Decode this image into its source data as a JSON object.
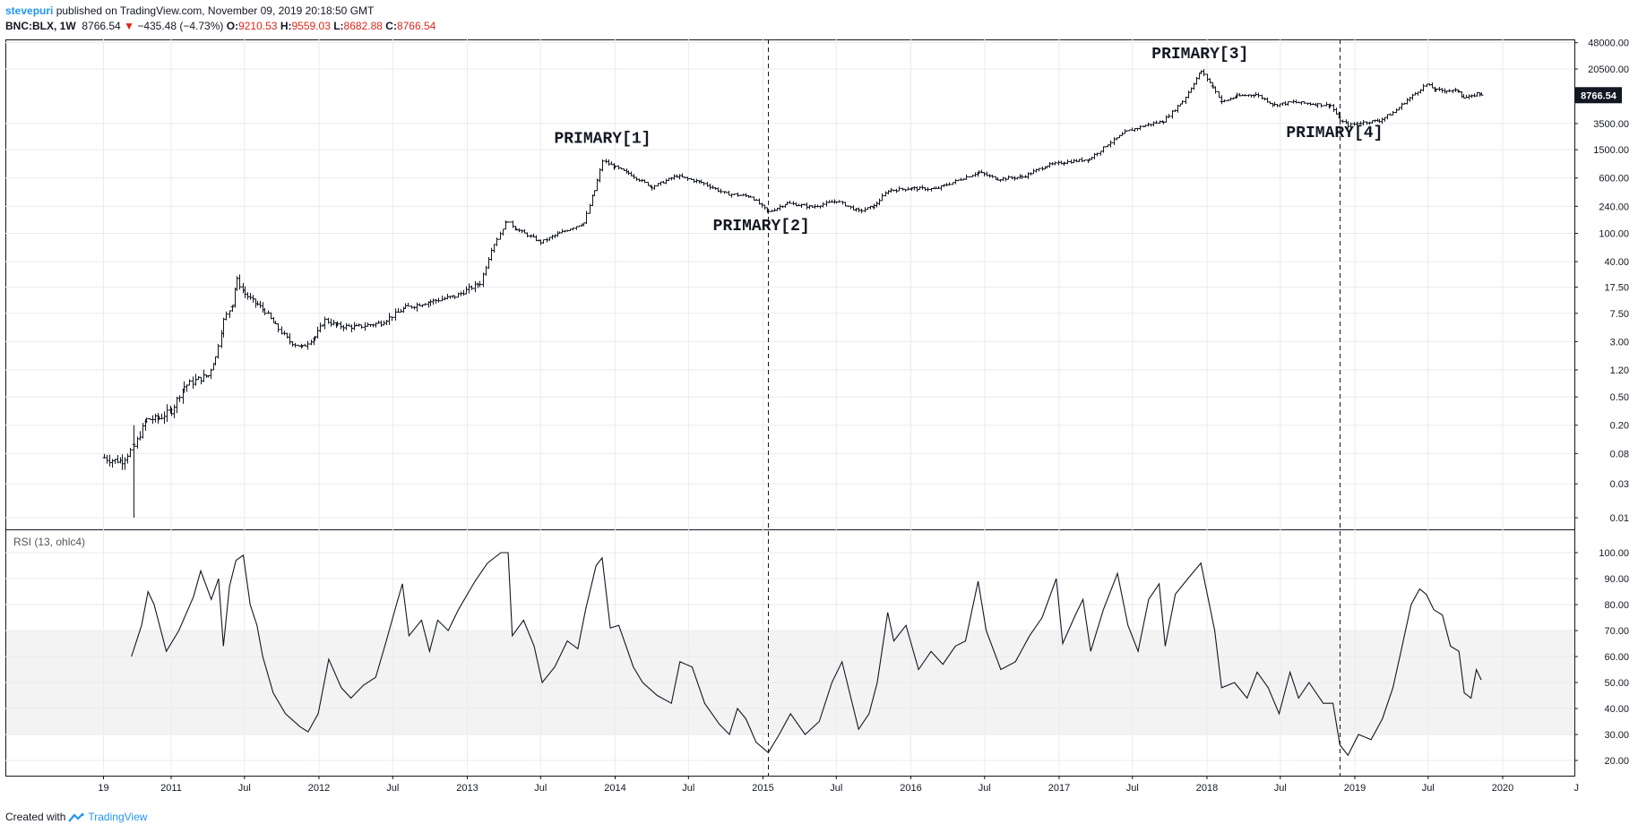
{
  "header": {
    "author": "stevepuri",
    "published_text": " published on TradingView.com, November 09, 2019 20:18:50 GMT",
    "symbol": "BNC:BLX, 1W",
    "last": "8766.54",
    "change_arrow": "▼",
    "change": "−435.48 (−4.73%)",
    "open_label": "O:",
    "open": "9210.53",
    "high_label": "H:",
    "high": "9559.03",
    "low_label": "L:",
    "low": "8682.88",
    "close_label": "C:",
    "close": "8766.54"
  },
  "footer": {
    "created_text": "Created with",
    "brand": "TradingView"
  },
  "colors": {
    "bars": "#131722",
    "down": "#e0261b",
    "link": "#2196f3",
    "grid": "#e9ebef",
    "rsi_band": "#f3f3f3",
    "price_tag_bg": "#131722"
  },
  "chart_data": [
    {
      "type": "ohlc",
      "panel": "price",
      "scale": "log",
      "x_tick_labels": [
        "19",
        "2011",
        "Jul",
        "2012",
        "Jul",
        "2013",
        "Jul",
        "2014",
        "Jul",
        "2015",
        "Jul",
        "2016",
        "Jul",
        "2017",
        "Jul",
        "2018",
        "Jul",
        "2019",
        "Jul",
        "2020",
        "J"
      ],
      "y_tick_labels": [
        "48000.00",
        "20500.00",
        "3500.00",
        "1500.00",
        "600.00",
        "240.00",
        "100.00",
        "40.00",
        "17.50",
        "7.50",
        "3.00",
        "1.20",
        "0.50",
        "0.20",
        "0.08",
        "0.03",
        "0.01"
      ],
      "last_price_label": "8766.54",
      "annotations": [
        "PRIMARY[1]",
        "PRIMARY[2]",
        "PRIMARY[3]",
        "PRIMARY[4]"
      ],
      "vertical_markers": [
        "2015",
        "Nov 2018"
      ],
      "series": [
        {
          "points": [
            [
              "2010-07-18",
              0.07
            ],
            [
              "2010-08-01",
              0.065
            ],
            [
              "2010-09-01",
              0.063
            ],
            [
              "2010-10-01",
              0.1
            ],
            [
              "2010-11-01",
              0.24
            ],
            [
              "2010-12-01",
              0.25
            ],
            [
              "2011-01-01",
              0.32
            ],
            [
              "2011-02-01",
              0.7
            ],
            [
              "2011-03-01",
              0.85
            ],
            [
              "2011-04-01",
              1.0
            ],
            [
              "2011-04-20",
              1.8
            ],
            [
              "2011-05-10",
              6.0
            ],
            [
              "2011-06-01",
              10.0
            ],
            [
              "2011-06-12",
              22.0
            ],
            [
              "2011-07-01",
              14.0
            ],
            [
              "2011-08-01",
              10.0
            ],
            [
              "2011-08-20",
              8.0
            ],
            [
              "2011-09-15",
              5.0
            ],
            [
              "2011-10-20",
              3.0
            ],
            [
              "2011-11-20",
              2.5
            ],
            [
              "2011-12-20",
              3.5
            ],
            [
              "2012-01-15",
              6.0
            ],
            [
              "2012-02-15",
              5.0
            ],
            [
              "2012-04-01",
              4.8
            ],
            [
              "2012-06-01",
              5.5
            ],
            [
              "2012-08-01",
              9.0
            ],
            [
              "2012-10-01",
              11.0
            ],
            [
              "2012-12-01",
              13.0
            ],
            [
              "2013-02-01",
              20.0
            ],
            [
              "2013-03-01",
              60.0
            ],
            [
              "2013-04-08",
              150.0
            ],
            [
              "2013-05-01",
              115.0
            ],
            [
              "2013-07-01",
              75.0
            ],
            [
              "2013-08-15",
              100.0
            ],
            [
              "2013-10-15",
              140.0
            ],
            [
              "2013-11-10",
              400.0
            ],
            [
              "2013-12-01",
              1050.0
            ],
            [
              "2014-01-01",
              850.0
            ],
            [
              "2014-02-01",
              700.0
            ],
            [
              "2014-04-01",
              450.0
            ],
            [
              "2014-06-01",
              640.0
            ],
            [
              "2014-08-01",
              520.0
            ],
            [
              "2014-10-01",
              360.0
            ],
            [
              "2014-12-01",
              330.0
            ],
            [
              "2015-01-14",
              200.0
            ],
            [
              "2015-03-01",
              265.0
            ],
            [
              "2015-05-01",
              235.0
            ],
            [
              "2015-07-01",
              285.0
            ],
            [
              "2015-08-25",
              205.0
            ],
            [
              "2015-10-01",
              240.0
            ],
            [
              "2015-11-05",
              400.0
            ],
            [
              "2016-01-01",
              430.0
            ],
            [
              "2016-03-01",
              420.0
            ],
            [
              "2016-06-15",
              720.0
            ],
            [
              "2016-08-01",
              580.0
            ],
            [
              "2016-10-01",
              620.0
            ],
            [
              "2016-12-01",
              900.0
            ],
            [
              "2017-01-15",
              1000.0
            ],
            [
              "2017-03-15",
              1100.0
            ],
            [
              "2017-05-01",
              1800.0
            ],
            [
              "2017-06-15",
              2700.0
            ],
            [
              "2017-08-01",
              3300.0
            ],
            [
              "2017-09-15",
              3800.0
            ],
            [
              "2017-11-01",
              7200.0
            ],
            [
              "2017-12-17",
              19000.0
            ],
            [
              "2018-01-15",
              11500.0
            ],
            [
              "2018-02-06",
              7000.0
            ],
            [
              "2018-03-15",
              8500.0
            ],
            [
              "2018-05-01",
              9000.0
            ],
            [
              "2018-06-15",
              6400.0
            ],
            [
              "2018-08-01",
              7000.0
            ],
            [
              "2018-10-01",
              6500.0
            ],
            [
              "2018-11-01",
              6300.0
            ],
            [
              "2018-11-25",
              3900.0
            ],
            [
              "2018-12-15",
              3300.0
            ],
            [
              "2019-01-15",
              3600.0
            ],
            [
              "2019-03-01",
              3850.0
            ],
            [
              "2019-04-05",
              5000.0
            ],
            [
              "2019-05-15",
              8000.0
            ],
            [
              "2019-06-26",
              12500.0
            ],
            [
              "2019-07-20",
              10300.0
            ],
            [
              "2019-08-15",
              10200.0
            ],
            [
              "2019-09-15",
              10000.0
            ],
            [
              "2019-09-26",
              8100.0
            ],
            [
              "2019-10-15",
              8300.0
            ],
            [
              "2019-10-28",
              9300.0
            ],
            [
              "2019-11-09",
              8766.54
            ]
          ]
        }
      ]
    },
    {
      "type": "line",
      "panel": "rsi",
      "title": "RSI (13, ohlc4)",
      "y_tick_labels": [
        "100.00",
        "90.00",
        "80.00",
        "70.00",
        "60.00",
        "50.00",
        "40.00",
        "30.00",
        "20.00"
      ],
      "band": [
        30,
        70
      ],
      "ylim": [
        15,
        105
      ],
      "series": [
        {
          "points": [
            [
              "2010-09-25",
              60
            ],
            [
              "2010-10-20",
              72
            ],
            [
              "2010-11-05",
              85
            ],
            [
              "2010-11-20",
              80
            ],
            [
              "2010-12-20",
              62
            ],
            [
              "2011-01-20",
              70
            ],
            [
              "2011-02-25",
              83
            ],
            [
              "2011-03-15",
              93
            ],
            [
              "2011-04-10",
              82
            ],
            [
              "2011-04-28",
              90
            ],
            [
              "2011-05-10",
              64
            ],
            [
              "2011-05-25",
              87
            ],
            [
              "2011-06-10",
              97
            ],
            [
              "2011-06-28",
              99
            ],
            [
              "2011-07-15",
              80
            ],
            [
              "2011-08-01",
              72
            ],
            [
              "2011-08-15",
              60
            ],
            [
              "2011-09-10",
              46
            ],
            [
              "2011-10-10",
              38
            ],
            [
              "2011-11-15",
              33
            ],
            [
              "2011-12-05",
              31
            ],
            [
              "2011-12-30",
              38
            ],
            [
              "2012-01-25",
              59
            ],
            [
              "2012-02-25",
              48
            ],
            [
              "2012-03-20",
              44
            ],
            [
              "2012-04-20",
              49
            ],
            [
              "2012-05-20",
              52
            ],
            [
              "2012-06-15",
              66
            ],
            [
              "2012-07-10",
              80
            ],
            [
              "2012-07-25",
              88
            ],
            [
              "2012-08-10",
              68
            ],
            [
              "2012-09-10",
              74
            ],
            [
              "2012-09-30",
              62
            ],
            [
              "2012-10-20",
              74
            ],
            [
              "2012-11-15",
              70
            ],
            [
              "2012-12-10",
              78
            ],
            [
              "2013-01-20",
              89
            ],
            [
              "2013-02-20",
              96
            ],
            [
              "2013-03-25",
              100
            ],
            [
              "2013-04-12",
              100
            ],
            [
              "2013-04-22",
              68
            ],
            [
              "2013-05-20",
              74
            ],
            [
              "2013-06-15",
              64
            ],
            [
              "2013-07-05",
              50
            ],
            [
              "2013-08-05",
              56
            ],
            [
              "2013-09-05",
              66
            ],
            [
              "2013-10-01",
              63
            ],
            [
              "2013-10-20",
              78
            ],
            [
              "2013-11-15",
              95
            ],
            [
              "2013-11-30",
              98
            ],
            [
              "2013-12-20",
              71
            ],
            [
              "2014-01-10",
              72
            ],
            [
              "2014-02-15",
              56
            ],
            [
              "2014-03-10",
              50
            ],
            [
              "2014-04-15",
              45
            ],
            [
              "2014-05-20",
              42
            ],
            [
              "2014-06-10",
              58
            ],
            [
              "2014-07-10",
              56
            ],
            [
              "2014-08-10",
              42
            ],
            [
              "2014-09-15",
              34
            ],
            [
              "2014-10-10",
              30
            ],
            [
              "2014-10-30",
              40
            ],
            [
              "2014-11-20",
              36
            ],
            [
              "2014-12-15",
              27
            ],
            [
              "2015-01-14",
              23
            ],
            [
              "2015-02-10",
              30
            ],
            [
              "2015-03-10",
              38
            ],
            [
              "2015-04-15",
              30
            ],
            [
              "2015-05-20",
              35
            ],
            [
              "2015-06-20",
              50
            ],
            [
              "2015-07-15",
              58
            ],
            [
              "2015-08-25",
              32
            ],
            [
              "2015-09-20",
              38
            ],
            [
              "2015-10-10",
              50
            ],
            [
              "2015-11-05",
              77
            ],
            [
              "2015-11-20",
              66
            ],
            [
              "2015-12-20",
              72
            ],
            [
              "2016-01-20",
              55
            ],
            [
              "2016-02-20",
              62
            ],
            [
              "2016-03-20",
              57
            ],
            [
              "2016-04-20",
              64
            ],
            [
              "2016-05-15",
              66
            ],
            [
              "2016-06-15",
              89
            ],
            [
              "2016-07-05",
              70
            ],
            [
              "2016-08-10",
              55
            ],
            [
              "2016-09-15",
              58
            ],
            [
              "2016-10-20",
              68
            ],
            [
              "2016-11-20",
              75
            ],
            [
              "2016-12-25",
              90
            ],
            [
              "2017-01-10",
              65
            ],
            [
              "2017-02-10",
              76
            ],
            [
              "2017-03-01",
              82
            ],
            [
              "2017-03-20",
              62
            ],
            [
              "2017-04-20",
              78
            ],
            [
              "2017-05-25",
              92
            ],
            [
              "2017-06-20",
              72
            ],
            [
              "2017-07-15",
              62
            ],
            [
              "2017-08-10",
              82
            ],
            [
              "2017-09-05",
              88
            ],
            [
              "2017-09-20",
              64
            ],
            [
              "2017-10-15",
              84
            ],
            [
              "2017-11-15",
              90
            ],
            [
              "2017-12-17",
              96
            ],
            [
              "2018-01-20",
              70
            ],
            [
              "2018-02-06",
              48
            ],
            [
              "2018-03-10",
              50
            ],
            [
              "2018-04-10",
              44
            ],
            [
              "2018-05-05",
              54
            ],
            [
              "2018-06-01",
              48
            ],
            [
              "2018-06-28",
              38
            ],
            [
              "2018-07-25",
              54
            ],
            [
              "2018-08-15",
              44
            ],
            [
              "2018-09-10",
              50
            ],
            [
              "2018-10-15",
              42
            ],
            [
              "2018-11-08",
              42
            ],
            [
              "2018-11-25",
              26
            ],
            [
              "2018-12-15",
              22
            ],
            [
              "2019-01-10",
              30
            ],
            [
              "2019-02-10",
              28
            ],
            [
              "2019-03-10",
              36
            ],
            [
              "2019-04-05",
              48
            ],
            [
              "2019-04-25",
              62
            ],
            [
              "2019-05-20",
              80
            ],
            [
              "2019-06-10",
              86
            ],
            [
              "2019-06-26",
              84
            ],
            [
              "2019-07-15",
              78
            ],
            [
              "2019-08-05",
              76
            ],
            [
              "2019-08-25",
              64
            ],
            [
              "2019-09-15",
              62
            ],
            [
              "2019-09-28",
              46
            ],
            [
              "2019-10-15",
              44
            ],
            [
              "2019-10-28",
              55
            ],
            [
              "2019-11-09",
              51
            ]
          ]
        }
      ]
    }
  ]
}
